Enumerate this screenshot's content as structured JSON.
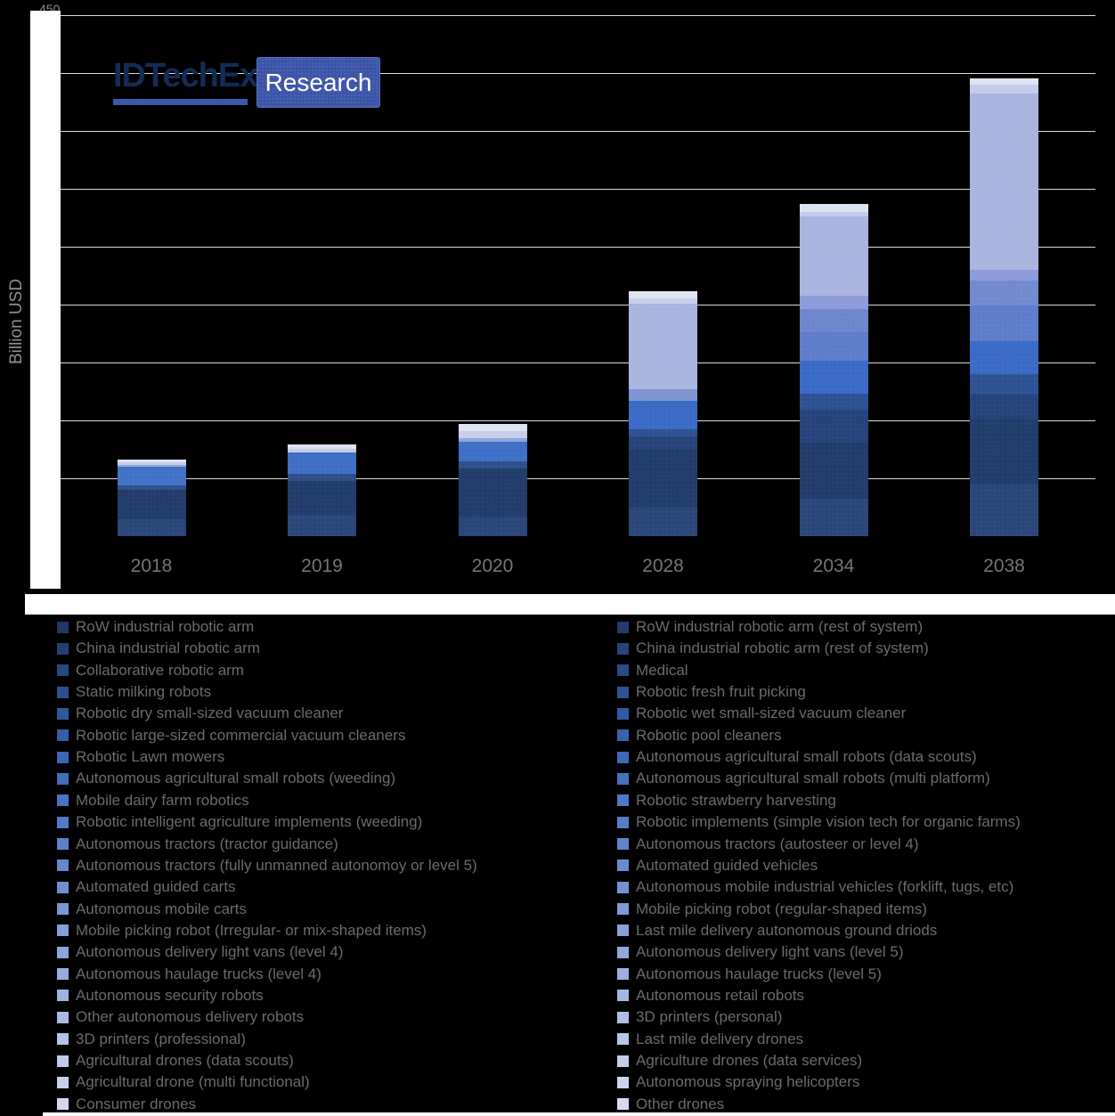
{
  "logo": {
    "brand": "IDTechEx",
    "badge": "Research"
  },
  "y_axis": {
    "label": "Billion USD",
    "top_tick_label": "450"
  },
  "chart_data": {
    "type": "bar",
    "stacked": true,
    "title": "",
    "xlabel": "",
    "ylabel": "Billion USD",
    "ylim": [
      0,
      450
    ],
    "ytick_step": 50,
    "grid": true,
    "legend_position": "bottom",
    "unit": "Billion USD",
    "categories": [
      "2018",
      "2019",
      "2020",
      "2028",
      "2034",
      "2038"
    ],
    "totals": [
      66,
      79,
      97,
      212,
      287,
      395
    ],
    "series_stack_order": [
      "RoW industrial robotic arm",
      "RoW industrial robotic arm (rest of system)",
      "China industrial robotic arm",
      "China industrial robotic arm (rest of system)",
      "Collaborative robotic arm",
      "Medical",
      "Static milking robots",
      "Robotic fresh fruit picking",
      "Robotic dry small-sized vacuum cleaner",
      "Robotic wet small-sized vacuum cleaner",
      "Robotic large-sized commercial vacuum cleaners",
      "Robotic pool cleaners",
      "Robotic Lawn mowers",
      "Autonomous agricultural small robots (data scouts)",
      "Autonomous agricultural small robots (weeding)",
      "Autonomous agricultural small robots (multi platform)",
      "Mobile dairy farm robotics",
      "Robotic strawberry harvesting",
      "Robotic intelligent agriculture implements (weeding)",
      "Robotic implements (simple vision tech for organic farms)",
      "Autonomous tractors (tractor guidance)",
      "Autonomous tractors (autosteer or level 4)",
      "Autonomous tractors (fully unmanned autonomoy or level 5)",
      "Automated guided vehicles",
      "Automated guided carts",
      "Autonomous mobile industrial vehicles (forklift, tugs, etc)",
      "Autonomous mobile carts",
      "Mobile picking robot (regular-shaped items)",
      "Mobile picking robot (Irregular- or mix-shaped items)",
      "Last mile delivery autonomous ground driods",
      "Autonomous delivery light vans (level 4)",
      "Autonomous delivery light vans (level 5)",
      "Autonomous haulage trucks (level 4)",
      "Autonomous  haulage trucks (level 5)",
      "Autonomous security robots",
      "Autonomous retail robots",
      "Other autonomous delivery robots",
      "3D printers (personal)",
      "3D printers (professional)",
      "Last mile delivery drones",
      "Agricultural drones (data scouts)",
      "Agriculture drones (data services)",
      "Agricultural drone (multi functional)",
      "Autonomous spraying helicopters",
      "Consumer drones",
      "Other drones"
    ],
    "bars": [
      {
        "year": "2018",
        "total": 66,
        "bands": [
          {
            "color": "#2A4678",
            "value": 14.6
          },
          {
            "color": "#223C6B",
            "value": 25.4
          },
          {
            "color": "#2E4F8B",
            "value": 3.8
          },
          {
            "color": "#4272C6",
            "value": 16.2
          },
          {
            "color": "#93A9DB",
            "value": 1.5
          },
          {
            "color": "#C3CCE8",
            "value": 2.3
          },
          {
            "color": "#DCE1F0",
            "value": 2.3
          }
        ]
      },
      {
        "year": "2019",
        "total": 79,
        "bands": [
          {
            "color": "#2A4678",
            "value": 18.5
          },
          {
            "color": "#223C6B",
            "value": 29.2
          },
          {
            "color": "#2E4F8B",
            "value": 6.2
          },
          {
            "color": "#3F6FC5",
            "value": 18.5
          },
          {
            "color": "#C3CCE8",
            "value": 3.1
          },
          {
            "color": "#DCE1F0",
            "value": 3.8
          }
        ]
      },
      {
        "year": "2020",
        "total": 97,
        "bands": [
          {
            "color": "#2A4678",
            "value": 16.9
          },
          {
            "color": "#223C6B",
            "value": 41.5
          },
          {
            "color": "#2E4F8B",
            "value": 6.2
          },
          {
            "color": "#3E6EC6",
            "value": 16.9
          },
          {
            "color": "#8FA5DA",
            "value": 3.1
          },
          {
            "color": "#C5CFE9",
            "value": 6.2
          },
          {
            "color": "#DEE3F1",
            "value": 6.2
          }
        ]
      },
      {
        "year": "2028",
        "total": 212,
        "bands": [
          {
            "color": "#2A4678",
            "value": 24.6
          },
          {
            "color": "#223C6B",
            "value": 50.0
          },
          {
            "color": "#26427A",
            "value": 11.5
          },
          {
            "color": "#2D5193",
            "value": 6.2
          },
          {
            "color": "#3A6AC5",
            "value": 24.6
          },
          {
            "color": "#7F93D2",
            "value": 10.0
          },
          {
            "color": "#A9B5DF",
            "value": 73.8
          },
          {
            "color": "#C7D0EA",
            "value": 4.6
          },
          {
            "color": "#DFE4F2",
            "value": 6.2
          }
        ]
      },
      {
        "year": "2034",
        "total": 287,
        "bands": [
          {
            "color": "#2A4678",
            "value": 32.3
          },
          {
            "color": "#223C6B",
            "value": 48.5
          },
          {
            "color": "#26427A",
            "value": 28.5
          },
          {
            "color": "#2D5193",
            "value": 13.8
          },
          {
            "color": "#3A6AC5",
            "value": 28.5
          },
          {
            "color": "#5E7CCA",
            "value": 24.6
          },
          {
            "color": "#6E86CE",
            "value": 20.0
          },
          {
            "color": "#8C9CD8",
            "value": 11.5
          },
          {
            "color": "#A9B5DF",
            "value": 68.5
          },
          {
            "color": "#C3CCE8",
            "value": 3.8
          },
          {
            "color": "#DEE3F1",
            "value": 6.9
          }
        ]
      },
      {
        "year": "2038",
        "total": 395,
        "bands": [
          {
            "color": "#2A4678",
            "value": 45.4
          },
          {
            "color": "#223C6B",
            "value": 56.2
          },
          {
            "color": "#26427A",
            "value": 20.8
          },
          {
            "color": "#2D5193",
            "value": 17.7
          },
          {
            "color": "#3A6AC5",
            "value": 28.5
          },
          {
            "color": "#5E7CCA",
            "value": 30.8
          },
          {
            "color": "#7289CE",
            "value": 21.5
          },
          {
            "color": "#8C9CD8",
            "value": 9.2
          },
          {
            "color": "#A9B5DF",
            "value": 152.3
          },
          {
            "color": "#C3CCE8",
            "value": 7.7
          },
          {
            "color": "#DEE3F1",
            "value": 5.4
          }
        ]
      }
    ]
  },
  "legend": {
    "left_column": [
      {
        "label": "RoW industrial robotic arm",
        "color": "#1F3864"
      },
      {
        "label": "China industrial robotic arm",
        "color": "#244072"
      },
      {
        "label": "Collaborative robotic arm",
        "color": "#28477F"
      },
      {
        "label": "Static milking robots",
        "color": "#2D4F8D"
      },
      {
        "label": "Robotic dry small-sized vacuum cleaner",
        "color": "#31579A"
      },
      {
        "label": "Robotic large-sized commercial vacuum cleaners",
        "color": "#365EA8"
      },
      {
        "label": "Robotic Lawn mowers",
        "color": "#3A66B5"
      },
      {
        "label": "Autonomous agricultural small robots (weeding)",
        "color": "#426DBA"
      },
      {
        "label": "Mobile dairy farm robotics",
        "color": "#4B73BF"
      },
      {
        "label": "Robotic intelligent agriculture implements (weeding)",
        "color": "#537AC4"
      },
      {
        "label": "Autonomous tractors (tractor guidance)",
        "color": "#5C81C9"
      },
      {
        "label": "Autonomous tractors (fully unmanned autonomoy or level 5)",
        "color": "#6487CE"
      },
      {
        "label": "Automated guided carts",
        "color": "#6E8ED1"
      },
      {
        "label": "Autonomous mobile carts",
        "color": "#7896D4"
      },
      {
        "label": "Mobile picking robot (Irregular- or mix-shaped items)",
        "color": "#829DD7"
      },
      {
        "label": "Autonomous delivery light vans (level 4)",
        "color": "#8CA5DA"
      },
      {
        "label": "Autonomous haulage trucks (level 4)",
        "color": "#96ACDD"
      },
      {
        "label": "Autonomous security robots",
        "color": "#A0B3E0"
      },
      {
        "label": "Other autonomous delivery robots",
        "color": "#A9BBE3"
      },
      {
        "label": "3D printers (professional)",
        "color": "#B3C2E6"
      },
      {
        "label": "Agricultural drones (data scouts)",
        "color": "#BDCAE9"
      },
      {
        "label": "Agricultural drone (multi functional)",
        "color": "#C7D1EC"
      },
      {
        "label": "Consumer drones",
        "color": "#D1D8EF"
      }
    ],
    "right_column": [
      {
        "label": "RoW industrial robotic arm (rest of system)",
        "color": "#213C6B"
      },
      {
        "label": "China industrial robotic arm (rest of system)",
        "color": "#264478"
      },
      {
        "label": "Medical",
        "color": "#2A4B86"
      },
      {
        "label": "Robotic fresh fruit picking",
        "color": "#2F5393"
      },
      {
        "label": "Robotic wet small-sized vacuum cleaner",
        "color": "#335AA1"
      },
      {
        "label": "Robotic pool cleaners",
        "color": "#3862AE"
      },
      {
        "label": "Autonomous agricultural small robots (data scouts)",
        "color": "#3E69B8"
      },
      {
        "label": "Autonomous agricultural small robots (multi platform)",
        "color": "#4770BD"
      },
      {
        "label": "Robotic strawberry harvesting",
        "color": "#4F77C2"
      },
      {
        "label": "Robotic implements (simple vision tech for organic farms)",
        "color": "#577DC7"
      },
      {
        "label": "Autonomous tractors (autosteer or level 4)",
        "color": "#6084CC"
      },
      {
        "label": "Automated guided vehicles",
        "color": "#698BCF"
      },
      {
        "label": "Autonomous mobile industrial vehicles (forklift, tugs, etc)",
        "color": "#7392D2"
      },
      {
        "label": "Mobile picking robot (regular-shaped items)",
        "color": "#7D9AD5"
      },
      {
        "label": "Last mile delivery autonomous ground driods",
        "color": "#87A1D8"
      },
      {
        "label": "Autonomous delivery light vans (level 5)",
        "color": "#91A8DB"
      },
      {
        "label": "Autonomous  haulage trucks (level 5)",
        "color": "#9BB0DE"
      },
      {
        "label": "Autonomous retail robots",
        "color": "#A4B7E1"
      },
      {
        "label": "3D printers (personal)",
        "color": "#AEBEE4"
      },
      {
        "label": "Last mile delivery drones",
        "color": "#B8C6E7"
      },
      {
        "label": "Agriculture drones (data services)",
        "color": "#C2CDEA"
      },
      {
        "label": "Autonomous spraying helicopters",
        "color": "#CCD5ED"
      },
      {
        "label": "Other drones",
        "color": "#D6DCF0"
      }
    ]
  }
}
